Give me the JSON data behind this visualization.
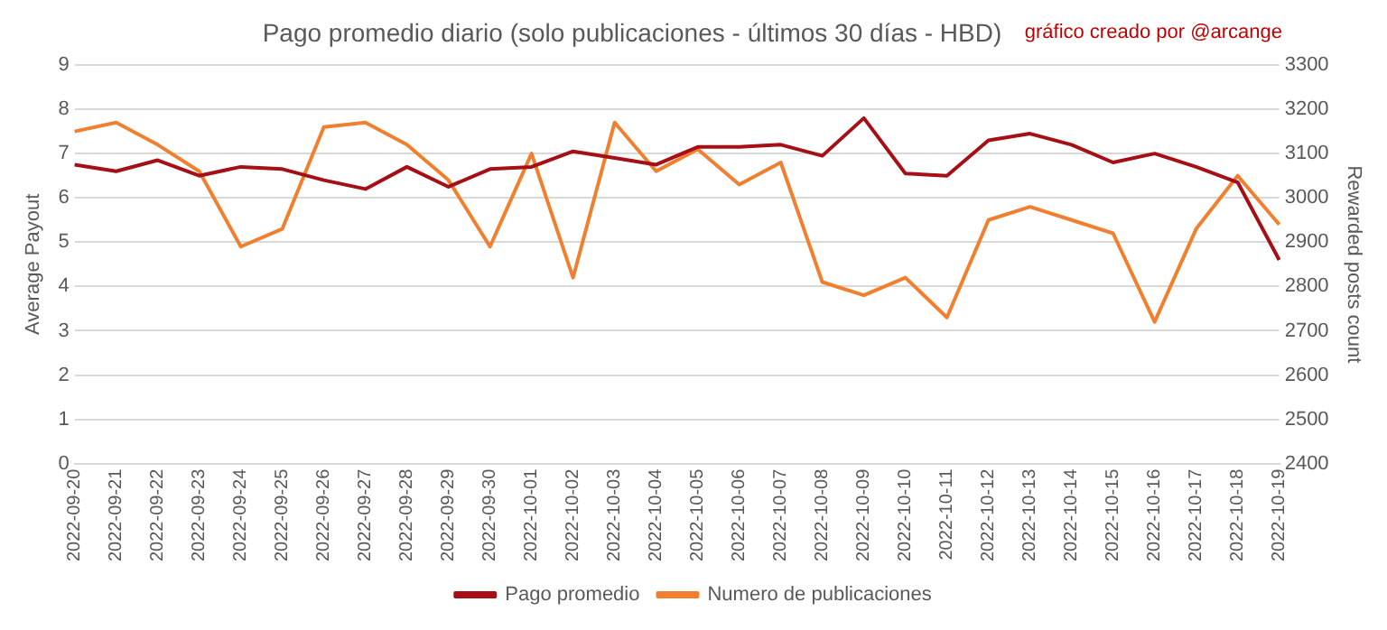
{
  "chart_data": {
    "type": "line",
    "title": "Pago promedio diario (solo publicaciones - últimos 30 días - HBD)",
    "annotations": [
      "gráfico creado por @arcange"
    ],
    "ylabel": "Average Payout",
    "y2label": "Rewarded posts count",
    "categories": [
      "2022-09-20",
      "2022-09-21",
      "2022-09-22",
      "2022-09-23",
      "2022-09-24",
      "2022-09-25",
      "2022-09-26",
      "2022-09-27",
      "2022-09-28",
      "2022-09-29",
      "2022-09-30",
      "2022-10-01",
      "2022-10-02",
      "2022-10-03",
      "2022-10-04",
      "2022-10-05",
      "2022-10-06",
      "2022-10-07",
      "2022-10-08",
      "2022-10-09",
      "2022-10-10",
      "2022-10-11",
      "2022-10-12",
      "2022-10-13",
      "2022-10-14",
      "2022-10-15",
      "2022-10-16",
      "2022-10-17",
      "2022-10-18",
      "2022-10-19"
    ],
    "series": [
      {
        "name": "Pago promedio",
        "color": "#a50f15",
        "values": [
          6.75,
          6.6,
          6.85,
          6.5,
          6.7,
          6.65,
          6.4,
          6.2,
          6.7,
          6.25,
          6.65,
          6.7,
          7.05,
          6.9,
          6.75,
          7.15,
          7.15,
          7.2,
          6.95,
          7.8,
          6.55,
          6.5,
          7.3,
          7.45,
          7.2,
          6.8,
          7.0,
          6.7,
          6.35,
          4.6
        ]
      },
      {
        "name": "Numero de publicaciones",
        "color": "#f08030",
        "axis": "y2",
        "values": [
          3150,
          3170,
          3120,
          3060,
          2890,
          2930,
          3160,
          3170,
          3120,
          3040,
          2890,
          3100,
          2820,
          3170,
          3060,
          3110,
          3030,
          3080,
          2810,
          2780,
          2820,
          2730,
          2950,
          2980,
          2950,
          2920,
          2720,
          2930,
          3050,
          2940
        ]
      }
    ],
    "ylim": [
      0,
      9
    ],
    "yticks": [
      0,
      1,
      2,
      3,
      4,
      5,
      6,
      7,
      8,
      9
    ],
    "y2lim": [
      2400,
      3300
    ],
    "y2ticks": [
      2400,
      2500,
      2600,
      2700,
      2800,
      2900,
      3000,
      3100,
      3200,
      3300
    ],
    "grid": "y",
    "legend": "bottom",
    "marker": "none",
    "line_style": "solid"
  }
}
